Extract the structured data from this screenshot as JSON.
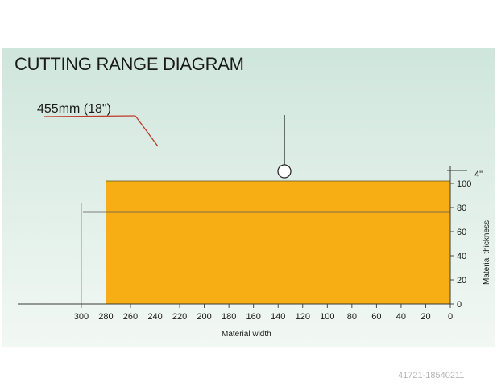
{
  "diagram": {
    "title": "CUTTING RANGE DIAGRAM",
    "blade_label": "455mm (18\")",
    "inch_label": "4\"",
    "x_axis": {
      "title": "Material width",
      "ticks": [
        "300",
        "280",
        "260",
        "240",
        "220",
        "200",
        "180",
        "160",
        "140",
        "120",
        "100",
        "80",
        "60",
        "40",
        "20",
        "0"
      ]
    },
    "y_axis": {
      "title": "Material thickness",
      "ticks": [
        "0",
        "20",
        "40",
        "60",
        "80",
        "100"
      ]
    },
    "colors": {
      "background_top": "#cfe6dc",
      "background_bottom": "#f2f8f4",
      "range_fill": "#f7ae14",
      "blade_outline": "#c0392b",
      "blade_body": "#ececea"
    },
    "cutting_range": {
      "max_width": 280,
      "max_thickness": 100
    },
    "reference_lines": {
      "width": 300,
      "thickness": 80
    }
  },
  "image_id": "41721-18540211"
}
